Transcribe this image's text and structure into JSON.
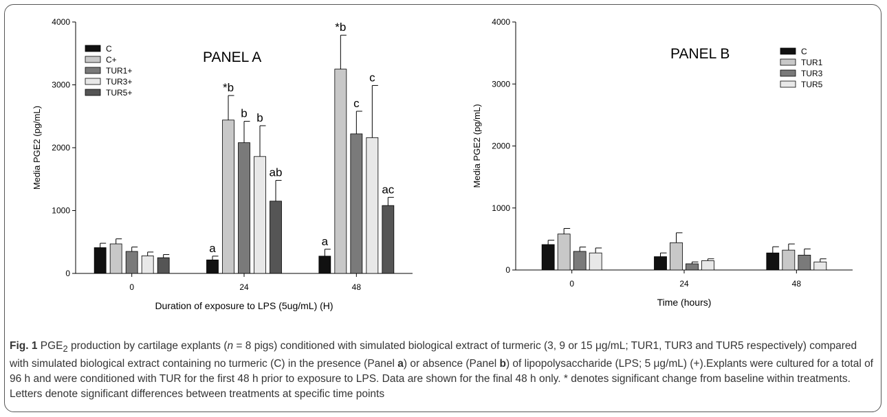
{
  "chart_data": [
    {
      "type": "bar",
      "panel_label": "PANEL A",
      "xlabel": "Duration of exposure to LPS (5ug/mL) (H)",
      "ylabel": "Media PGE2 (pg/mL)",
      "ylim": [
        0,
        4000
      ],
      "yticks": [
        "0",
        "1000",
        "2000",
        "3000",
        "4000"
      ],
      "categories": [
        "0",
        "24",
        "48"
      ],
      "legend_position": "top-left",
      "series": [
        {
          "name": "C",
          "color": "#111111",
          "values": [
            410,
            215,
            275
          ],
          "errors": [
            70,
            60,
            110
          ],
          "annotations": [
            "",
            "a",
            "a"
          ]
        },
        {
          "name": "C+",
          "color": "#c8c8c8",
          "values": [
            470,
            2440,
            3250
          ],
          "errors": [
            80,
            390,
            540
          ],
          "annotations": [
            "",
            "*b",
            "*b"
          ]
        },
        {
          "name": "TUR1+",
          "color": "#7a7a7a",
          "values": [
            350,
            2080,
            2220
          ],
          "errors": [
            70,
            340,
            360
          ],
          "annotations": [
            "",
            "b",
            "c"
          ]
        },
        {
          "name": "TUR3+",
          "color": "#e8e8e8",
          "values": [
            280,
            1860,
            2160
          ],
          "errors": [
            60,
            490,
            830
          ],
          "annotations": [
            "",
            "b",
            "c"
          ]
        },
        {
          "name": "TUR5+",
          "color": "#555555",
          "values": [
            250,
            1150,
            1080
          ],
          "errors": [
            50,
            330,
            130
          ],
          "annotations": [
            "",
            "ab",
            "ac"
          ]
        }
      ]
    },
    {
      "type": "bar",
      "panel_label": "PANEL B",
      "xlabel": "Time (hours)",
      "ylabel": "Media PGE2 (pg/mL)",
      "ylim": [
        0,
        4000
      ],
      "yticks": [
        "0",
        "1000",
        "2000",
        "3000",
        "4000"
      ],
      "categories": [
        "0",
        "24",
        "48"
      ],
      "legend_position": "top-right",
      "series": [
        {
          "name": "C",
          "color": "#111111",
          "values": [
            410,
            215,
            275
          ],
          "errors": [
            70,
            60,
            100
          ]
        },
        {
          "name": "TUR1",
          "color": "#c8c8c8",
          "values": [
            580,
            440,
            320
          ],
          "errors": [
            90,
            160,
            100
          ]
        },
        {
          "name": "TUR3",
          "color": "#7a7a7a",
          "values": [
            300,
            100,
            240
          ],
          "errors": [
            70,
            30,
            100
          ]
        },
        {
          "name": "TUR5",
          "color": "#e8e8e8",
          "values": [
            275,
            150,
            130
          ],
          "errors": [
            80,
            30,
            50
          ]
        }
      ]
    }
  ],
  "caption": {
    "fig_label": "Fig. 1",
    "seg1": " PGE",
    "sub": "2",
    "seg2": " production by cartilage explants (",
    "n": "n",
    "seg3": " = 8 pigs) conditioned with simulated biological extract of turmeric (3, 9 or 15 μg/mL; TUR1, TUR3 and TUR5 respectively) compared with simulated biological extract containing no turmeric (C) in the presence (Panel ",
    "panel_a": "a",
    "seg4": ") or absence (Panel ",
    "panel_b": "b",
    "seg5": ") of lipopolysaccharide (LPS; 5 μg/mL) (+).Explants were cultured for a total of 96 h and were conditioned with TUR for the first 48 h prior to exposure to LPS. Data are shown for the final 48 h only. * denotes significant change from baseline within treatments. Letters denote significant differences between treatments at specific time points"
  }
}
